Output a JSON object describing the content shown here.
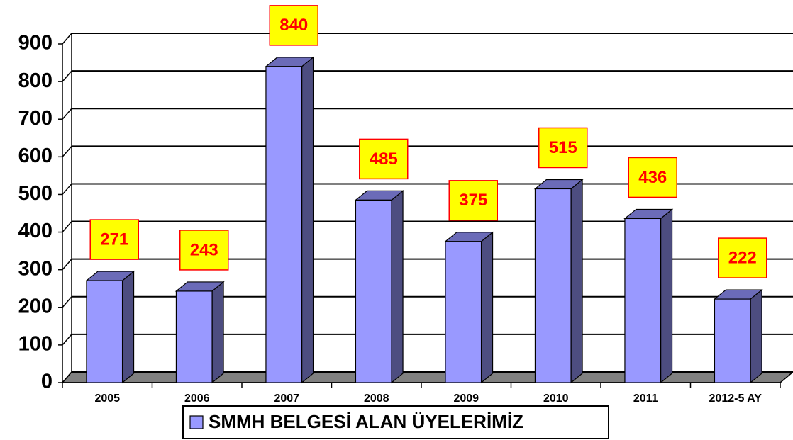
{
  "chart_data": {
    "type": "bar",
    "categories": [
      "2005",
      "2006",
      "2007",
      "2008",
      "2009",
      "2010",
      "2011",
      "2012-5 AY"
    ],
    "series": [
      {
        "name": "SMMH BELGESİ ALAN ÜYELERİMİZ",
        "color": "#9999ff",
        "values": [
          271,
          243,
          840,
          485,
          375,
          515,
          436,
          222
        ]
      }
    ],
    "ylim": [
      0,
      900
    ],
    "yticks": [
      0,
      100,
      200,
      300,
      400,
      500,
      600,
      700,
      800,
      900
    ],
    "grid": true,
    "legend": "bottom"
  }
}
